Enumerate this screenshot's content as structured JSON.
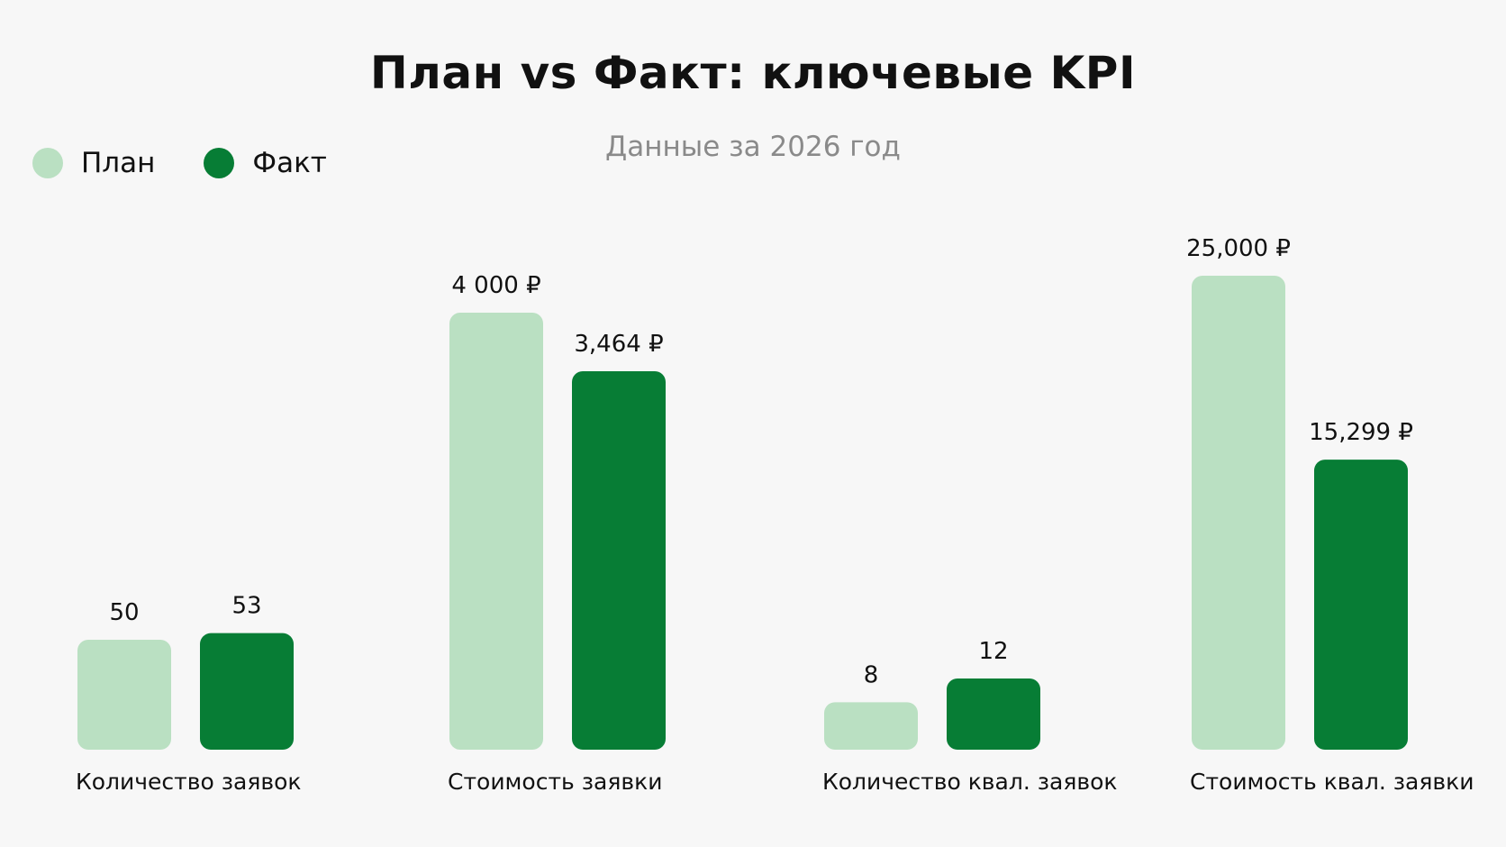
{
  "title": "План vs Факт: ключевые KPI",
  "subtitle": "Данные за 2026 год",
  "legend": {
    "plan_label": "План",
    "fact_label": "Факт",
    "placement": "top-left"
  },
  "colors": {
    "plan": "#bae0c2",
    "fact": "#077d35",
    "background": "#f7f7f7"
  },
  "chart_data": {
    "type": "bar",
    "title": "План vs Факт: ключевые KPI",
    "subtitle": "Данные за 2026 год",
    "xlabel": "",
    "ylabel": "",
    "grid": false,
    "legend_placement": "top-left",
    "categories": [
      "Количество заявок",
      "Стоимость заявки",
      "Количество квал. заявок",
      "Стоимость квал. заявки"
    ],
    "series": [
      {
        "name": "План",
        "values": [
          50,
          4000,
          8,
          25000
        ],
        "labels": [
          "50",
          "4 000 ₽",
          "8",
          "25,000 ₽"
        ]
      },
      {
        "name": "Факт",
        "values": [
          53,
          3464,
          12,
          15299
        ],
        "labels": [
          "53",
          "3,464 ₽",
          "12",
          "15,299 ₽"
        ]
      }
    ]
  }
}
